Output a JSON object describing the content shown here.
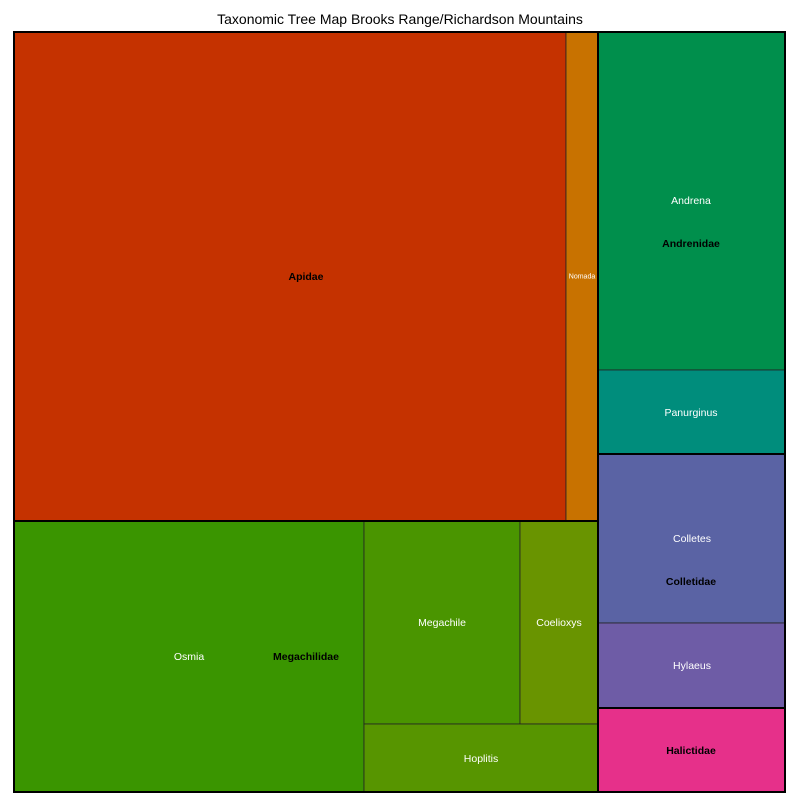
{
  "chart_data": {
    "type": "treemap",
    "title": "Taxonomic Tree Map Brooks Range/Richardson Mountains",
    "families": [
      {
        "name": "Apidae",
        "color": "#c53200",
        "genera": [
          {
            "name": "",
            "color": "#c53200"
          },
          {
            "name": "Nomada",
            "color": "#c87200"
          }
        ]
      },
      {
        "name": "Megachilidae",
        "color": "#3a9500",
        "genera": [
          {
            "name": "Osmia",
            "color": "#3a9500"
          },
          {
            "name": "Megachile",
            "color": "#4a9500"
          },
          {
            "name": "Coelioxys",
            "color": "#699400"
          },
          {
            "name": "Hoplitis",
            "color": "#579500"
          }
        ]
      },
      {
        "name": "Andrenidae",
        "color": "#008f4c",
        "genera": [
          {
            "name": "Andrena",
            "color": "#008f4c"
          },
          {
            "name": "Panurginus",
            "color": "#008d7c"
          }
        ]
      },
      {
        "name": "Colletidae",
        "color": "#5a63a4",
        "genera": [
          {
            "name": "Colletes",
            "color": "#5a63a4"
          },
          {
            "name": "Hylaeus",
            "color": "#6e5ca6"
          }
        ]
      },
      {
        "name": "Halictidae",
        "color": "#e6308a",
        "genera": []
      }
    ]
  }
}
